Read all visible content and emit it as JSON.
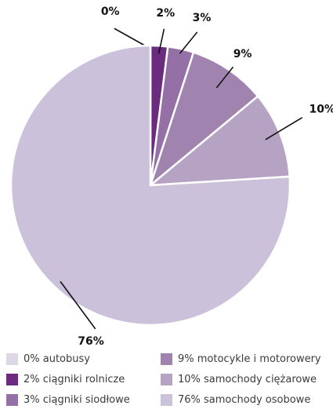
{
  "chart_data": {
    "type": "pie",
    "title": "",
    "slices": [
      {
        "label": "autobusy",
        "value": 0,
        "value_label": "0%",
        "legend_text": "0% autobusy",
        "color": "#ddd7e6"
      },
      {
        "label": "ciągniki rolnicze",
        "value": 2,
        "value_label": "2%",
        "legend_text": "2% ciągniki rolnicze",
        "color": "#6b2c7f"
      },
      {
        "label": "ciągniki siodłowe",
        "value": 3,
        "value_label": "3%",
        "legend_text": "3% ciągniki siodłowe",
        "color": "#9470a6"
      },
      {
        "label": "motocykle i motorowery",
        "value": 9,
        "value_label": "9%",
        "legend_text": "9% motocykle i motorowery",
        "color": "#a183b0"
      },
      {
        "label": "samochody ciężarowe",
        "value": 10,
        "value_label": "10%",
        "legend_text": "10% samochody ciężarowe",
        "color": "#b6a2c3"
      },
      {
        "label": "samochody osobowe",
        "value": 76,
        "value_label": "76%",
        "legend_text": "76% samochody osobowe",
        "color": "#cbc1da"
      }
    ],
    "start_angle_deg": 0,
    "direction": "clockwise",
    "legend_position": "bottom"
  }
}
